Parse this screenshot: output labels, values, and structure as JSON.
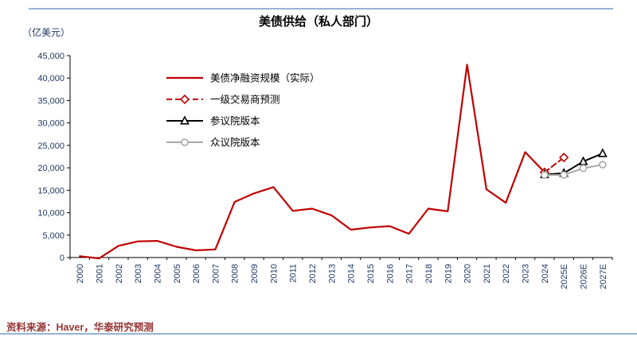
{
  "footer": {
    "source": "资料来源：Haver，华泰研究预测"
  },
  "style": {
    "rule_color": "#95B3D7",
    "axis_label_color": "#1F3864",
    "axis_line_color": "#000000",
    "source_color": "#943634",
    "legend_text_color": "#000000",
    "background": "#FFFFFF"
  },
  "chart_data": {
    "type": "line",
    "title": "美债供给（私人部门）",
    "unit_label": "（亿美元）",
    "xlabel": "",
    "ylabel": "",
    "ylim": [
      0,
      45000
    ],
    "ytick_step": 5000,
    "grid": false,
    "legend_position": "inside-top-left",
    "categories": [
      "2000",
      "2001",
      "2002",
      "2003",
      "2004",
      "2005",
      "2006",
      "2007",
      "2008",
      "2009",
      "2010",
      "2011",
      "2012",
      "2013",
      "2014",
      "2015",
      "2016",
      "2017",
      "2018",
      "2019",
      "2020",
      "2021",
      "2022",
      "2023",
      "2024",
      "2025E",
      "2026E",
      "2027E"
    ],
    "series": [
      {
        "key": "actual",
        "name": "美债净融资规模（实际）",
        "color": "#C00000",
        "dash": "solid",
        "marker": "none",
        "width": 2.2,
        "values": [
          300,
          -200,
          2600,
          3600,
          3700,
          2400,
          1600,
          1800,
          12400,
          14300,
          15700,
          10400,
          10900,
          9400,
          6200,
          6700,
          7000,
          5300,
          10900,
          10300,
          43000,
          15200,
          12200,
          23500,
          19000,
          null,
          null,
          null
        ]
      },
      {
        "key": "dealer-forecast",
        "name": "一级交易商预测",
        "color": "#C00000",
        "dash": "dashed",
        "marker": "diamond",
        "width": 2,
        "values": [
          null,
          null,
          null,
          null,
          null,
          null,
          null,
          null,
          null,
          null,
          null,
          null,
          null,
          null,
          null,
          null,
          null,
          null,
          null,
          null,
          null,
          null,
          null,
          null,
          19000,
          22300,
          null,
          null
        ]
      },
      {
        "key": "senate-version",
        "name": "参议院版本",
        "color": "#000000",
        "dash": "solid",
        "marker": "triangle",
        "width": 2,
        "values": [
          null,
          null,
          null,
          null,
          null,
          null,
          null,
          null,
          null,
          null,
          null,
          null,
          null,
          null,
          null,
          null,
          null,
          null,
          null,
          null,
          null,
          null,
          null,
          null,
          18500,
          18800,
          21400,
          23200
        ]
      },
      {
        "key": "house-version",
        "name": "众议院版本",
        "color": "#A6A6A6",
        "dash": "solid",
        "marker": "circle",
        "width": 2,
        "values": [
          null,
          null,
          null,
          null,
          null,
          null,
          null,
          null,
          null,
          null,
          null,
          null,
          null,
          null,
          null,
          null,
          null,
          null,
          null,
          null,
          null,
          null,
          null,
          null,
          18400,
          18400,
          19900,
          20700
        ]
      }
    ]
  }
}
